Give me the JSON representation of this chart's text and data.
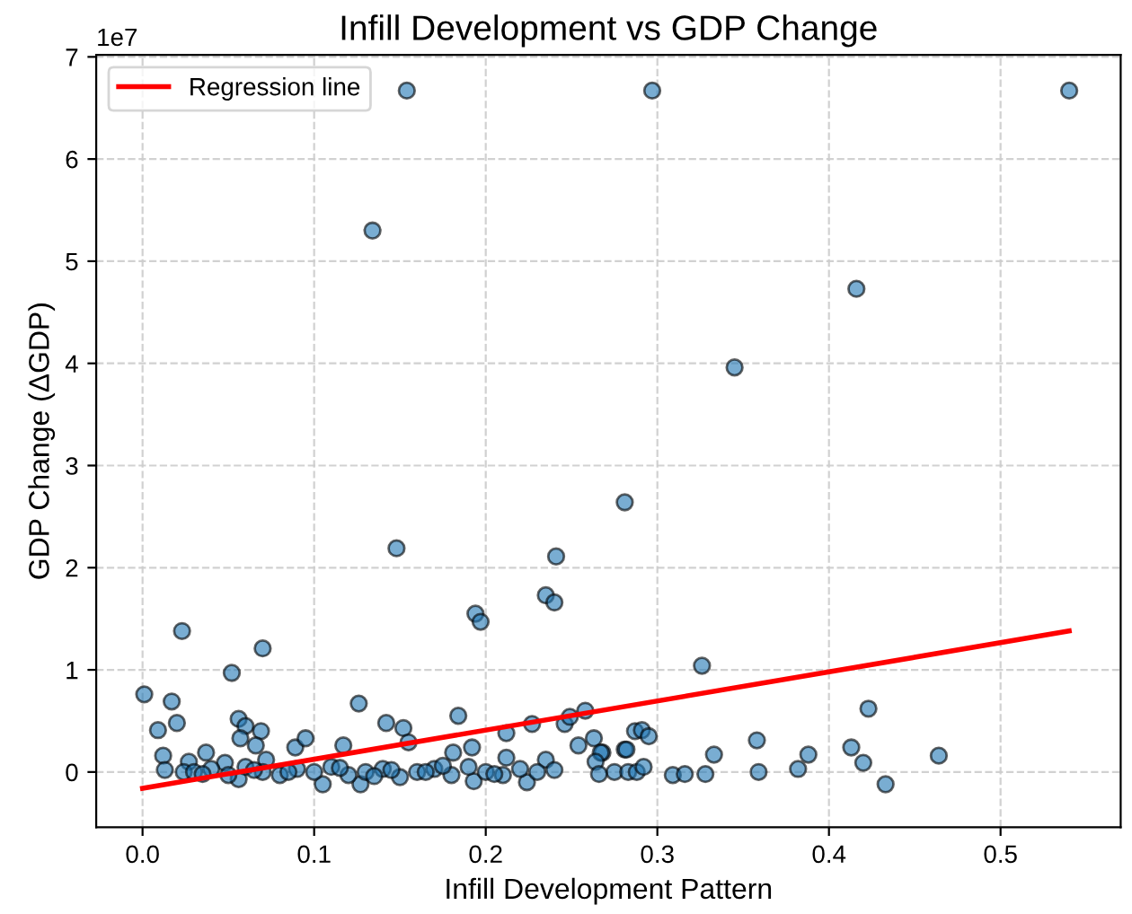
{
  "chart_data": {
    "type": "scatter",
    "title": "Infill Development vs GDP Change",
    "xlabel": "Infill Development Pattern",
    "ylabel": "GDP Change (ΔGDP)",
    "annotations": [
      "1e7"
    ],
    "xlim": [
      -0.027,
      0.57
    ],
    "xticks": [
      {
        "value": 0,
        "label": "0.0"
      },
      0.1,
      0.2,
      0.3,
      0.4,
      0.5
    ],
    "ylim": [
      -0.54,
      7.02
    ],
    "yticks": [
      0,
      1,
      2,
      3,
      4,
      5,
      6,
      7
    ],
    "grid": true,
    "legend": "top left",
    "series": [
      {
        "marker": "circle",
        "color": "#1f77b4",
        "x": [
          0.154,
          0.297,
          0.54,
          0.134,
          0.416,
          0.345,
          0.281,
          0.148,
          0.241,
          0.235,
          0.194,
          0.001,
          0.023,
          0.009,
          0.017,
          0.02,
          0.012,
          0.013,
          0.027,
          0.024,
          0.037,
          0.052,
          0.07,
          0.056,
          0.06,
          0.057,
          0.069,
          0.066,
          0.072,
          0.048,
          0.089,
          0.095,
          0.117,
          0.126,
          0.142,
          0.152,
          0.155,
          0.184,
          0.181,
          0.192,
          0.212,
          0.212,
          0.227,
          0.235,
          0.246,
          0.249,
          0.258,
          0.254,
          0.263,
          0.268,
          0.281,
          0.197,
          0.24,
          0.105,
          0.127,
          0.224,
          0.193,
          0.056,
          0.326,
          0.423,
          0.287,
          0.291,
          0.295,
          0.282,
          0.267,
          0.264,
          0.275,
          0.283,
          0.288,
          0.292,
          0.309,
          0.316,
          0.328,
          0.333,
          0.358,
          0.359,
          0.382,
          0.388,
          0.413,
          0.42,
          0.433,
          0.464,
          0.266,
          0.03,
          0.04,
          0.05,
          0.06,
          0.07,
          0.08,
          0.09,
          0.1,
          0.11,
          0.12,
          0.13,
          0.14,
          0.15,
          0.16,
          0.17,
          0.18,
          0.19,
          0.2,
          0.21,
          0.22,
          0.23,
          0.24,
          0.035,
          0.065,
          0.085,
          0.115,
          0.135,
          0.145,
          0.165,
          0.175,
          0.205
        ],
        "values": [
          6.67,
          6.67,
          6.67,
          5.3,
          4.73,
          3.96,
          2.64,
          2.19,
          2.11,
          1.73,
          1.55,
          0.76,
          1.38,
          0.41,
          0.69,
          0.48,
          0.16,
          0.02,
          0.1,
          0.0,
          0.19,
          0.97,
          1.21,
          0.52,
          0.45,
          0.33,
          0.4,
          0.26,
          0.12,
          0.09,
          0.24,
          0.33,
          0.26,
          0.67,
          0.48,
          0.43,
          0.29,
          0.55,
          0.19,
          0.24,
          0.38,
          0.14,
          0.47,
          0.12,
          0.47,
          0.54,
          0.6,
          0.26,
          0.33,
          0.19,
          0.22,
          1.47,
          1.66,
          -0.12,
          -0.12,
          -0.1,
          -0.09,
          -0.07,
          1.04,
          0.62,
          0.4,
          0.41,
          0.35,
          0.22,
          0.19,
          0.1,
          0.0,
          0.0,
          0.0,
          0.05,
          -0.03,
          -0.02,
          -0.02,
          0.17,
          0.31,
          0.0,
          0.03,
          0.17,
          0.24,
          0.09,
          -0.12,
          0.16,
          -0.02,
          0.0,
          0.03,
          -0.03,
          0.05,
          0.0,
          -0.03,
          0.03,
          0.0,
          0.05,
          -0.03,
          0.0,
          0.03,
          -0.05,
          0.0,
          0.03,
          -0.03,
          0.05,
          0.0,
          -0.03,
          0.03,
          0.0,
          0.02,
          -0.02,
          0.02,
          0.0,
          0.04,
          -0.04,
          0.02,
          0.0,
          0.06,
          -0.02
        ]
      },
      {
        "type": "line",
        "marker": "none",
        "name": "Regression line",
        "color": "#ff0000",
        "x": [
          0.0,
          0.54
        ],
        "values": [
          -0.16,
          1.38
        ]
      }
    ]
  }
}
